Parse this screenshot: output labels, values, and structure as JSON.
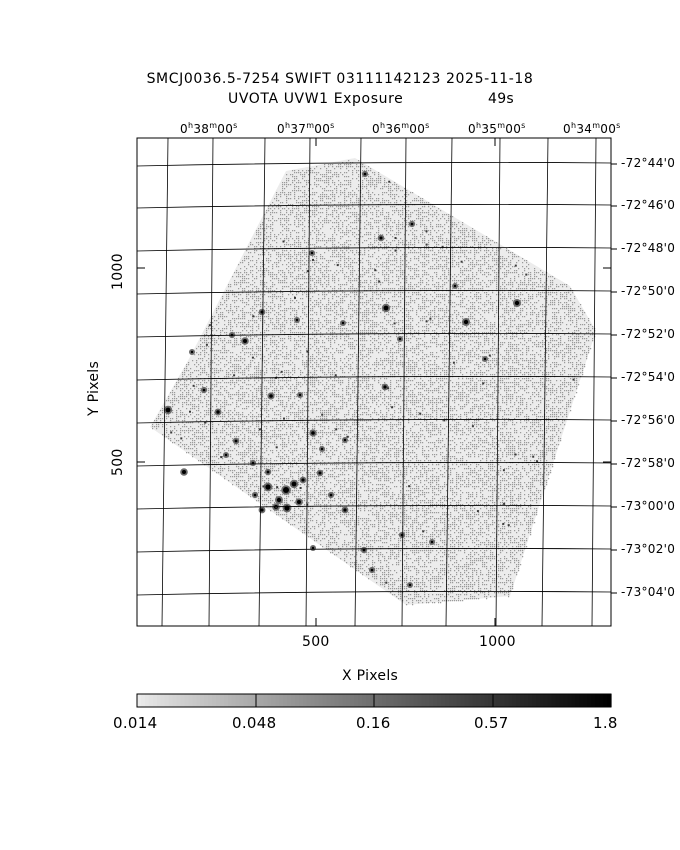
{
  "header": {
    "title_line1": "SMCJ0036.5-7254 SWIFT 03111142123 2025-11-18",
    "title_line2": "UVOTA UVW1 Exposure",
    "exposure": "49s"
  },
  "ra_labels": [
    {
      "h": "0",
      "m": "38",
      "s": "00"
    },
    {
      "h": "0",
      "m": "37",
      "s": "00"
    },
    {
      "h": "0",
      "m": "36",
      "s": "00"
    },
    {
      "h": "0",
      "m": "35",
      "s": "00"
    },
    {
      "h": "0",
      "m": "34",
      "s": "00"
    }
  ],
  "dec_labels": [
    "-72°44'0",
    "-72°46'0",
    "-72°48'0",
    "-72°50'0",
    "-72°52'0",
    "-72°54'0",
    "-72°56'0",
    "-72°58'0",
    "-73°00'0",
    "-73°02'0",
    "-73°04'0"
  ],
  "axes": {
    "x_label": "X Pixels",
    "y_label": "Y Pixels",
    "x_ticks": [
      "500",
      "1000"
    ],
    "y_ticks": [
      "1000",
      "500"
    ]
  },
  "colorbar": {
    "ticks": [
      "0.014",
      "0.048",
      "0.16",
      "0.57",
      "1.8"
    ]
  },
  "colors": {
    "background": "#ffffff",
    "noise": "#9a9a9a",
    "source": "#000000"
  }
}
